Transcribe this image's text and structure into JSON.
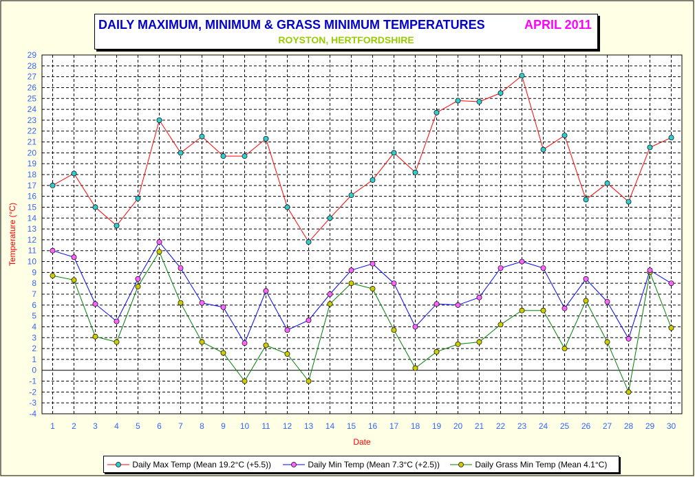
{
  "colors": {
    "background": "#ffffe6",
    "grid": "#000000",
    "tick_label": "#3366ff",
    "axis_title": "#ff0000",
    "max_line": "#ff0000",
    "max_marker": "#33cccc",
    "min_line": "#0000ff",
    "min_marker": "#ff66ff",
    "grass_line": "#008000",
    "grass_marker": "#cccc00"
  },
  "chart_data": {
    "type": "line",
    "title": "DAILY MAXIMUM, MINIMUM & GRASS MINIMUM TEMPERATURES",
    "title_month": "APRIL 2011",
    "subtitle": "ROYSTON, HERTFORDSHIRE",
    "xlabel": "Date",
    "ylabel": "Temperature (°C)",
    "ylim": [
      -4,
      29
    ],
    "ytick_step": 1,
    "grid": true,
    "legend_position": "bottom",
    "x": [
      1,
      2,
      3,
      4,
      5,
      6,
      7,
      8,
      9,
      10,
      11,
      12,
      13,
      14,
      15,
      16,
      17,
      18,
      19,
      20,
      21,
      22,
      23,
      24,
      25,
      26,
      27,
      28,
      29,
      30
    ],
    "series": [
      {
        "name": "Daily Max Temp (Mean 19.2°C (+5.5))",
        "values": [
          17.0,
          18.1,
          15.0,
          13.3,
          15.8,
          23.0,
          20.0,
          21.5,
          19.7,
          19.7,
          21.3,
          15.0,
          11.8,
          14.0,
          16.1,
          17.5,
          20.0,
          18.2,
          23.7,
          24.8,
          24.7,
          25.5,
          27.1,
          20.3,
          21.6,
          15.7,
          17.2,
          15.5,
          20.5,
          21.4
        ]
      },
      {
        "name": "Daily Min Temp (Mean 7.3°C (+2.5))",
        "values": [
          11.0,
          10.4,
          6.1,
          4.5,
          8.4,
          11.8,
          9.4,
          6.2,
          5.8,
          2.5,
          7.3,
          3.7,
          4.6,
          7.0,
          9.2,
          9.8,
          8.0,
          4.0,
          6.1,
          6.0,
          6.7,
          9.4,
          10.0,
          9.4,
          5.7,
          8.4,
          6.3,
          2.9,
          9.2,
          8.0
        ]
      },
      {
        "name": "Daily Grass Min Temp (Mean 4.1°C)",
        "values": [
          8.7,
          8.3,
          3.1,
          2.6,
          7.7,
          10.9,
          6.2,
          2.6,
          1.6,
          -1.0,
          2.3,
          1.5,
          -1.0,
          6.1,
          8.0,
          7.5,
          3.7,
          0.2,
          1.7,
          2.4,
          2.6,
          4.2,
          5.5,
          5.5,
          2.0,
          6.4,
          2.6,
          -2.0,
          9.0,
          3.9
        ]
      }
    ]
  }
}
